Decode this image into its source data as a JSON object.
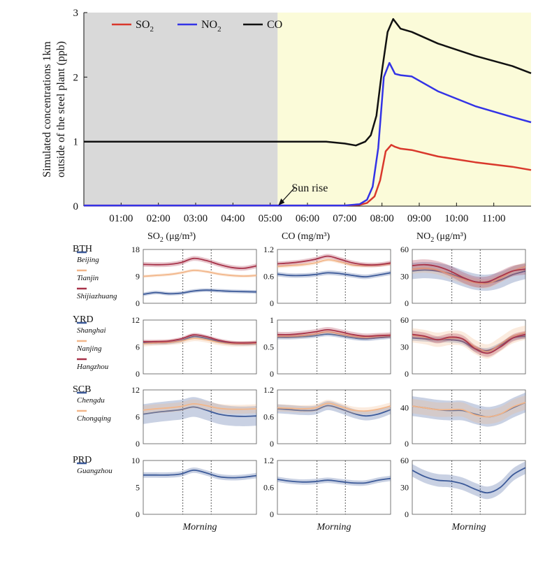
{
  "chart_data": [
    {
      "id": "top",
      "type": "line",
      "ylabel_lines": [
        "Simulated concentrations 1km",
        "outside of the steel plant (ppb)"
      ],
      "xlabel": "",
      "x_range": [
        0,
        12
      ],
      "ylim": [
        0,
        3
      ],
      "y_ticks": [
        "0",
        "1",
        "2",
        "3"
      ],
      "x_ticks": [
        {
          "x": 1,
          "label": "01:00"
        },
        {
          "x": 2,
          "label": "02:00"
        },
        {
          "x": 3,
          "label": "03:00"
        },
        {
          "x": 4,
          "label": "04:00"
        },
        {
          "x": 5,
          "label": "05:00"
        },
        {
          "x": 6,
          "label": "06:00"
        },
        {
          "x": 7,
          "label": "07:00"
        },
        {
          "x": 8,
          "label": "08:00"
        },
        {
          "x": 9,
          "label": "09:00"
        },
        {
          "x": 10,
          "label": "10:00"
        },
        {
          "x": 11,
          "label": "11:00"
        }
      ],
      "night_shade_until": 5.2,
      "night_color": "#d9d9d9",
      "day_color": "#fbfbd9",
      "annotation": {
        "text": "Sun rise",
        "x": 5.2,
        "y": 0
      },
      "legend": [
        {
          "main": "SO",
          "sub": "2",
          "color": "#d9382c"
        },
        {
          "main": "NO",
          "sub": "2",
          "color": "#3333e6"
        },
        {
          "main": "CO",
          "sub": "",
          "color": "#111111"
        }
      ],
      "series": [
        {
          "name": "SO2",
          "color": "#d9382c",
          "x": [
            0,
            7.0,
            7.4,
            7.6,
            7.8,
            7.95,
            8.1,
            8.25,
            8.35,
            8.5,
            8.8,
            9.5,
            10.5,
            11.5,
            12
          ],
          "y": [
            0.01,
            0.01,
            0.02,
            0.05,
            0.15,
            0.4,
            0.85,
            0.95,
            0.92,
            0.89,
            0.87,
            0.77,
            0.68,
            0.61,
            0.56
          ]
        },
        {
          "name": "NO2",
          "color": "#3333e6",
          "x": [
            0,
            7.0,
            7.4,
            7.6,
            7.75,
            7.9,
            8.05,
            8.2,
            8.35,
            8.5,
            8.8,
            9.5,
            10.5,
            11.5,
            12
          ],
          "y": [
            0.01,
            0.01,
            0.03,
            0.1,
            0.3,
            0.9,
            2.0,
            2.22,
            2.05,
            2.03,
            2.01,
            1.78,
            1.55,
            1.38,
            1.3
          ]
        },
        {
          "name": "CO",
          "color": "#111111",
          "x": [
            0,
            5.0,
            6.5,
            7.0,
            7.3,
            7.55,
            7.7,
            7.85,
            8.0,
            8.15,
            8.3,
            8.5,
            8.8,
            9.5,
            10.5,
            11.5,
            12
          ],
          "y": [
            1.0,
            1.0,
            1.0,
            0.97,
            0.94,
            1.0,
            1.1,
            1.4,
            2.1,
            2.7,
            2.9,
            2.75,
            2.7,
            2.52,
            2.33,
            2.17,
            2.06
          ]
        }
      ]
    },
    {
      "id": "grid",
      "type": "line",
      "columns": [
        {
          "main": "SO",
          "sub": "2",
          "unit": " (μg/m³)"
        },
        {
          "main": "CO",
          "sub": "",
          "unit": " (mg/m³)"
        },
        {
          "main": "NO",
          "sub": "2",
          "unit": " (μg/m³)"
        }
      ],
      "xlabel": "Morning",
      "rows": [
        {
          "region": "BTH",
          "cities": [
            {
              "name": "Beijing",
              "color": "#3c5a99"
            },
            {
              "name": "Tianjin",
              "color": "#f2b68a"
            },
            {
              "name": "Shijiazhuang",
              "color": "#a8334a"
            }
          ],
          "panels": [
            {
              "ylim": [
                0,
                18
              ],
              "y_ticks": [
                "0",
                "9",
                "18"
              ],
              "series": [
                {
                  "values": [
                    3.0,
                    3.6,
                    3.2,
                    3.4,
                    4.1,
                    4.4,
                    4.2,
                    4.0,
                    3.9,
                    3.8
                  ],
                  "band": 0.6
                },
                {
                  "values": [
                    9.0,
                    9.3,
                    9.6,
                    10.2,
                    11.0,
                    10.6,
                    9.8,
                    9.3,
                    9.1,
                    9.3
                  ],
                  "band": 0.5
                },
                {
                  "values": [
                    13.0,
                    12.9,
                    13.0,
                    13.6,
                    15.0,
                    14.3,
                    13.0,
                    12.0,
                    11.7,
                    12.5
                  ],
                  "band": 0.8
                }
              ]
            },
            {
              "ylim": [
                0,
                1.2
              ],
              "y_ticks": [
                "0",
                "0.6",
                "1.2"
              ],
              "series": [
                {
                  "values": [
                    0.65,
                    0.62,
                    0.62,
                    0.64,
                    0.68,
                    0.66,
                    0.62,
                    0.59,
                    0.63,
                    0.68
                  ],
                  "band": 0.05
                },
                {
                  "values": [
                    0.82,
                    0.84,
                    0.86,
                    0.9,
                    0.97,
                    0.92,
                    0.85,
                    0.84,
                    0.85,
                    0.88
                  ],
                  "band": 0.04
                },
                {
                  "values": [
                    0.88,
                    0.9,
                    0.93,
                    0.98,
                    1.05,
                    0.98,
                    0.9,
                    0.86,
                    0.86,
                    0.9
                  ],
                  "band": 0.05
                }
              ]
            },
            {
              "ylim": [
                0,
                60
              ],
              "y_ticks": [
                "0",
                "30",
                "60"
              ],
              "series": [
                {
                  "values": [
                    36,
                    37,
                    36,
                    33,
                    28,
                    24,
                    23,
                    26,
                    32,
                    36
                  ],
                  "band": 9
                },
                {
                  "values": [
                    38,
                    39,
                    37,
                    32,
                    27,
                    23,
                    22,
                    28,
                    36,
                    41
                  ],
                  "band": 5
                },
                {
                  "values": [
                    42,
                    43,
                    41,
                    36,
                    29,
                    24,
                    24,
                    30,
                    36,
                    38
                  ],
                  "band": 6
                }
              ]
            }
          ]
        },
        {
          "region": "YRD",
          "cities": [
            {
              "name": "Shanghai",
              "color": "#3c5a99"
            },
            {
              "name": "Nanjing",
              "color": "#f2b68a"
            },
            {
              "name": "Hangzhou",
              "color": "#a8334a"
            }
          ],
          "panels": [
            {
              "ylim": [
                0,
                12
              ],
              "y_ticks": [
                "0",
                "6",
                "12"
              ],
              "series": [
                {
                  "values": [
                    6.9,
                    6.9,
                    7.0,
                    7.4,
                    8.3,
                    7.9,
                    7.2,
                    6.8,
                    6.7,
                    6.8
                  ],
                  "band": 0.4
                },
                {
                  "values": [
                    6.7,
                    6.9,
                    7.0,
                    7.3,
                    7.9,
                    7.6,
                    7.0,
                    6.7,
                    6.7,
                    6.8
                  ],
                  "band": 0.6
                },
                {
                  "values": [
                    7.2,
                    7.2,
                    7.3,
                    7.8,
                    8.7,
                    8.3,
                    7.5,
                    7.0,
                    6.9,
                    7.0
                  ],
                  "band": 0.4
                }
              ]
            },
            {
              "ylim": [
                0,
                1
              ],
              "y_ticks": [
                "0",
                "0.5",
                "1"
              ],
              "series": [
                {
                  "values": [
                    0.68,
                    0.68,
                    0.69,
                    0.71,
                    0.74,
                    0.71,
                    0.67,
                    0.65,
                    0.67,
                    0.69
                  ],
                  "band": 0.04
                },
                {
                  "values": [
                    0.7,
                    0.7,
                    0.71,
                    0.74,
                    0.78,
                    0.74,
                    0.7,
                    0.68,
                    0.7,
                    0.71
                  ],
                  "band": 0.04
                },
                {
                  "values": [
                    0.73,
                    0.73,
                    0.75,
                    0.78,
                    0.82,
                    0.78,
                    0.73,
                    0.7,
                    0.71,
                    0.72
                  ],
                  "band": 0.05
                }
              ]
            },
            {
              "ylim": [
                0,
                60
              ],
              "y_ticks": [
                "0",
                "30",
                "60"
              ],
              "series": [
                {
                  "values": [
                    40,
                    39,
                    38,
                    38,
                    36,
                    28,
                    26,
                    32,
                    40,
                    42
                  ],
                  "band": 3
                },
                {
                  "values": [
                    43,
                    41,
                    38,
                    40,
                    39,
                    30,
                    25,
                    33,
                    42,
                    46
                  ],
                  "band": 8
                },
                {
                  "values": [
                    44,
                    42,
                    38,
                    41,
                    39,
                    28,
                    23,
                    30,
                    40,
                    44
                  ],
                  "band": 4
                }
              ]
            }
          ]
        },
        {
          "region": "SCB",
          "cities": [
            {
              "name": "Chengdu",
              "color": "#3c5a99"
            },
            {
              "name": "Chongqing",
              "color": "#f2b68a"
            }
          ],
          "panels": [
            {
              "ylim": [
                0,
                12
              ],
              "y_ticks": [
                "0",
                "6",
                "12"
              ],
              "series": [
                {
                  "values": [
                    6.6,
                    7.0,
                    7.3,
                    7.6,
                    8.2,
                    7.5,
                    6.6,
                    6.2,
                    6.1,
                    6.2
                  ],
                  "band": 2.2
                },
                {
                  "values": [
                    7.5,
                    7.8,
                    8.0,
                    8.3,
                    8.9,
                    8.5,
                    7.9,
                    7.7,
                    7.7,
                    7.8
                  ],
                  "band": 1.0
                }
              ]
            },
            {
              "ylim": [
                0,
                1.2
              ],
              "y_ticks": [
                "0",
                "0.6",
                "1.2"
              ],
              "series": [
                {
                  "values": [
                    0.78,
                    0.76,
                    0.74,
                    0.75,
                    0.85,
                    0.78,
                    0.68,
                    0.62,
                    0.66,
                    0.76
                  ],
                  "band": 0.1
                },
                {
                  "values": [
                    0.8,
                    0.79,
                    0.78,
                    0.8,
                    0.9,
                    0.83,
                    0.75,
                    0.73,
                    0.77,
                    0.84
                  ],
                  "band": 0.08
                }
              ]
            },
            {
              "ylim": [
                0,
                60
              ],
              "y_ticks": [
                "0",
                "40"
              ],
              "series": [
                {
                  "values": [
                    42,
                    40,
                    38,
                    37,
                    37,
                    33,
                    30,
                    33,
                    40,
                    46
                  ],
                  "band": 11
                },
                {
                  "values": [
                    42,
                    40,
                    38,
                    38,
                    38,
                    32,
                    30,
                    33,
                    41,
                    46
                  ],
                  "band": 8
                }
              ]
            }
          ]
        },
        {
          "region": "PRD",
          "cities": [
            {
              "name": "Guangzhou",
              "color": "#3c5a99"
            }
          ],
          "panels": [
            {
              "ylim": [
                0,
                10
              ],
              "y_ticks": [
                "0",
                "5",
                "10"
              ],
              "series": [
                {
                  "values": [
                    7.3,
                    7.3,
                    7.3,
                    7.5,
                    8.2,
                    7.7,
                    7.0,
                    6.8,
                    6.9,
                    7.2
                  ],
                  "band": 0.5
                }
              ]
            },
            {
              "ylim": [
                0,
                1.2
              ],
              "y_ticks": [
                "0",
                "0.6",
                "1.2"
              ],
              "series": [
                {
                  "values": [
                    0.78,
                    0.74,
                    0.72,
                    0.73,
                    0.76,
                    0.73,
                    0.7,
                    0.7,
                    0.76,
                    0.8
                  ],
                  "band": 0.06
                }
              ]
            },
            {
              "ylim": [
                0,
                60
              ],
              "y_ticks": [
                "0",
                "30",
                "60"
              ],
              "series": [
                {
                  "values": [
                    49,
                    42,
                    38,
                    37,
                    34,
                    28,
                    24,
                    30,
                    44,
                    52
                  ],
                  "band": 7
                }
              ]
            }
          ]
        }
      ]
    }
  ]
}
